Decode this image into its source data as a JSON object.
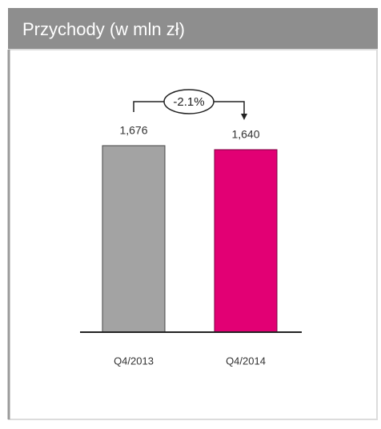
{
  "chart_data": {
    "type": "bar",
    "title": "Przychody (w mln zł)",
    "categories": [
      "Q4/2013",
      "Q4/2014"
    ],
    "values": [
      1676,
      1640
    ],
    "value_labels": [
      "1,676",
      "1,640"
    ],
    "colors": [
      "#a3a3a3",
      "#e20074"
    ],
    "annotation": "-2.1%"
  }
}
